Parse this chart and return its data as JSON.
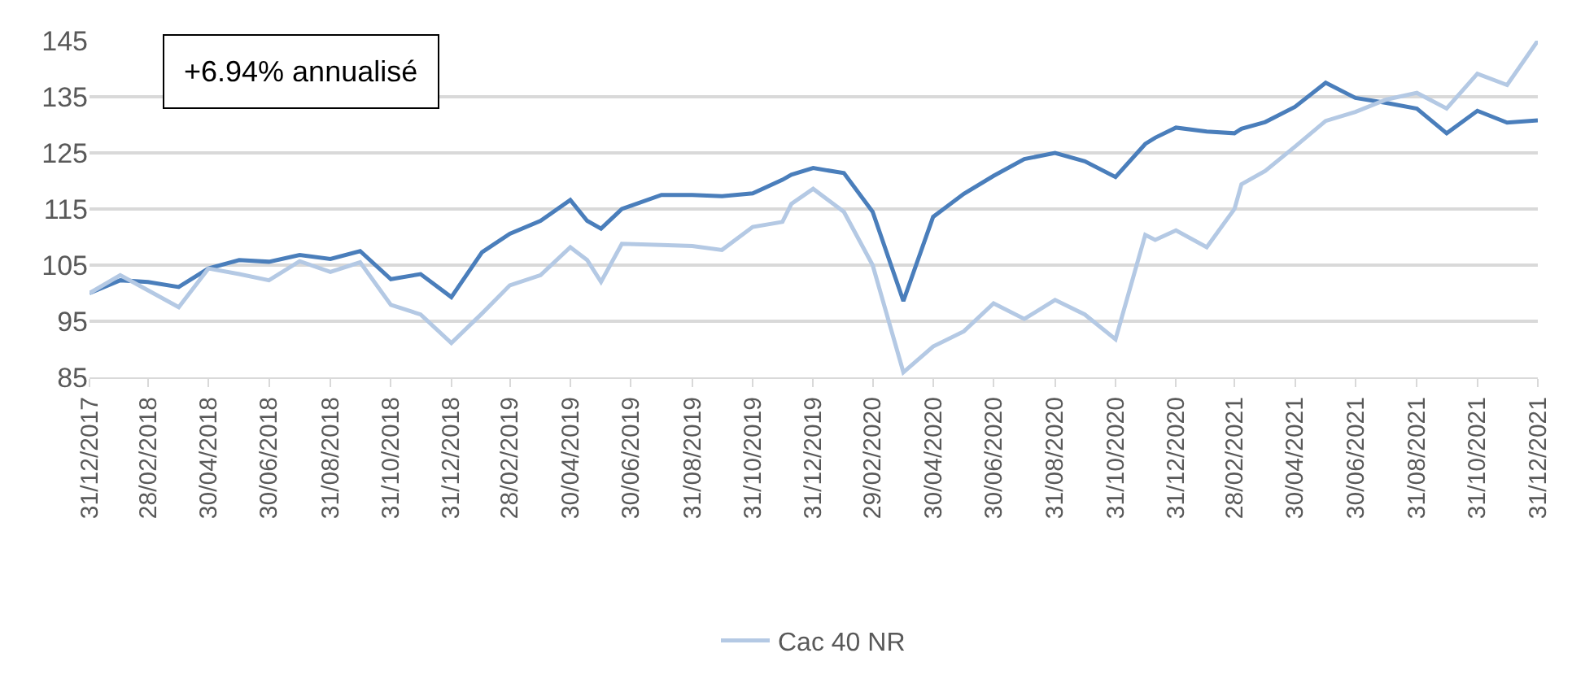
{
  "chart_data": {
    "type": "line",
    "annotations": [
      "+6.94% annualisé"
    ],
    "series": [
      {
        "color": "#4a7ebb",
        "x": [
          "2017-12-31",
          "2018-01-31",
          "2018-02-28",
          "2018-03-31",
          "2018-04-30",
          "2018-05-31",
          "2018-06-30",
          "2018-07-31",
          "2018-08-31",
          "2018-09-30",
          "2018-10-31",
          "2018-11-30",
          "2018-12-31",
          "2019-01-31",
          "2019-02-28",
          "2019-03-31",
          "2019-04-30",
          "2019-05-17",
          "2019-05-31",
          "2019-06-21",
          "2019-07-31",
          "2019-08-31",
          "2019-09-30",
          "2019-10-31",
          "2019-11-30",
          "2019-12-09",
          "2019-12-31",
          "2020-01-31",
          "2020-02-29",
          "2020-03-31",
          "2020-04-30",
          "2020-05-31",
          "2020-06-30",
          "2020-07-31",
          "2020-08-31",
          "2020-09-30",
          "2020-10-31",
          "2020-11-30",
          "2020-12-10",
          "2020-12-31",
          "2021-01-31",
          "2021-02-28",
          "2021-03-07",
          "2021-03-31",
          "2021-04-30",
          "2021-05-31",
          "2021-06-30",
          "2021-07-31",
          "2021-08-31",
          "2021-09-30",
          "2021-10-31",
          "2021-11-30",
          "2021-12-31"
        ],
        "values": [
          100,
          102.3,
          102,
          101.1,
          104.4,
          105.9,
          105.6,
          106.8,
          106.1,
          107.5,
          102.5,
          103.4,
          99.3,
          107.3,
          110.6,
          112.9,
          116.6,
          112.9,
          111.5,
          115,
          117.5,
          117.5,
          117.3,
          117.8,
          120.2,
          121.1,
          122.3,
          121.4,
          114.5,
          98.6,
          113.6,
          117.7,
          120.9,
          123.9,
          125,
          123.5,
          120.7,
          126.6,
          127.7,
          129.5,
          128.8,
          128.5,
          129.3,
          130.5,
          133.2,
          137.5,
          134.8,
          133.9,
          132.9,
          128.5,
          132.5,
          130.4,
          130.8
        ]
      },
      {
        "name": "Cac 40 NR",
        "color": "#b4c9e4",
        "x": [
          "2017-12-31",
          "2018-01-31",
          "2018-02-28",
          "2018-03-31",
          "2018-04-30",
          "2018-05-31",
          "2018-06-30",
          "2018-07-31",
          "2018-08-31",
          "2018-09-30",
          "2018-10-31",
          "2018-11-30",
          "2018-12-31",
          "2019-01-31",
          "2019-02-28",
          "2019-03-31",
          "2019-04-30",
          "2019-05-17",
          "2019-05-31",
          "2019-06-21",
          "2019-07-31",
          "2019-08-31",
          "2019-09-30",
          "2019-10-31",
          "2019-11-30",
          "2019-12-09",
          "2019-12-31",
          "2020-01-31",
          "2020-02-29",
          "2020-03-31",
          "2020-04-30",
          "2020-05-31",
          "2020-06-30",
          "2020-07-31",
          "2020-08-31",
          "2020-09-30",
          "2020-10-31",
          "2020-11-30",
          "2020-12-10",
          "2020-12-31",
          "2021-01-31",
          "2021-02-28",
          "2021-03-07",
          "2021-03-31",
          "2021-04-30",
          "2021-05-31",
          "2021-06-30",
          "2021-07-31",
          "2021-08-31",
          "2021-09-30",
          "2021-10-31",
          "2021-11-30",
          "2021-12-31"
        ],
        "values": [
          100,
          103.2,
          100.5,
          97.5,
          104.4,
          103.4,
          102.3,
          105.7,
          103.8,
          105.5,
          97.9,
          96.2,
          91.1,
          96.4,
          101.4,
          103.2,
          108.2,
          105.9,
          102,
          108.8,
          108.6,
          108.4,
          107.7,
          111.8,
          112.7,
          115.9,
          118.6,
          114.5,
          105,
          85.9,
          90.5,
          93.2,
          98.2,
          95.4,
          98.8,
          96.2,
          91.8,
          110.4,
          109.5,
          111.2,
          108.2,
          115,
          119.4,
          121.8,
          126.1,
          130.7,
          132.3,
          134.5,
          135.7,
          132.9,
          139.1,
          137.1,
          145
        ]
      }
    ],
    "xlim": [
      "2017-12-31",
      "2021-12-31"
    ],
    "xticks": [
      {
        "value": "2017-12-31",
        "label": "31/12/2017"
      },
      {
        "value": "2018-02-28",
        "label": "28/02/2018"
      },
      {
        "value": "2018-04-30",
        "label": "30/04/2018"
      },
      {
        "value": "2018-06-30",
        "label": "30/06/2018"
      },
      {
        "value": "2018-08-31",
        "label": "31/08/2018"
      },
      {
        "value": "2018-10-31",
        "label": "31/10/2018"
      },
      {
        "value": "2018-12-31",
        "label": "31/12/2018"
      },
      {
        "value": "2019-02-28",
        "label": "28/02/2019"
      },
      {
        "value": "2019-04-30",
        "label": "30/04/2019"
      },
      {
        "value": "2019-06-30",
        "label": "30/06/2019"
      },
      {
        "value": "2019-08-31",
        "label": "31/08/2019"
      },
      {
        "value": "2019-10-31",
        "label": "31/10/2019"
      },
      {
        "value": "2019-12-31",
        "label": "31/12/2019"
      },
      {
        "value": "2020-02-29",
        "label": "29/02/2020"
      },
      {
        "value": "2020-04-30",
        "label": "30/04/2020"
      },
      {
        "value": "2020-06-30",
        "label": "30/06/2020"
      },
      {
        "value": "2020-08-31",
        "label": "31/08/2020"
      },
      {
        "value": "2020-10-31",
        "label": "31/10/2020"
      },
      {
        "value": "2020-12-31",
        "label": "31/12/2020"
      },
      {
        "value": "2021-02-28",
        "label": "28/02/2021"
      },
      {
        "value": "2021-04-30",
        "label": "30/04/2021"
      },
      {
        "value": "2021-06-30",
        "label": "30/06/2021"
      },
      {
        "value": "2021-08-31",
        "label": "31/08/2021"
      },
      {
        "value": "2021-10-31",
        "label": "31/10/2021"
      },
      {
        "value": "2021-12-31",
        "label": "31/12/2021"
      }
    ],
    "ylim": [
      85,
      145
    ],
    "yticks": [
      85,
      95,
      105,
      115,
      125,
      135,
      145
    ],
    "grid": "y",
    "legend": "bottom",
    "marker": "none",
    "line_style": "solid"
  }
}
